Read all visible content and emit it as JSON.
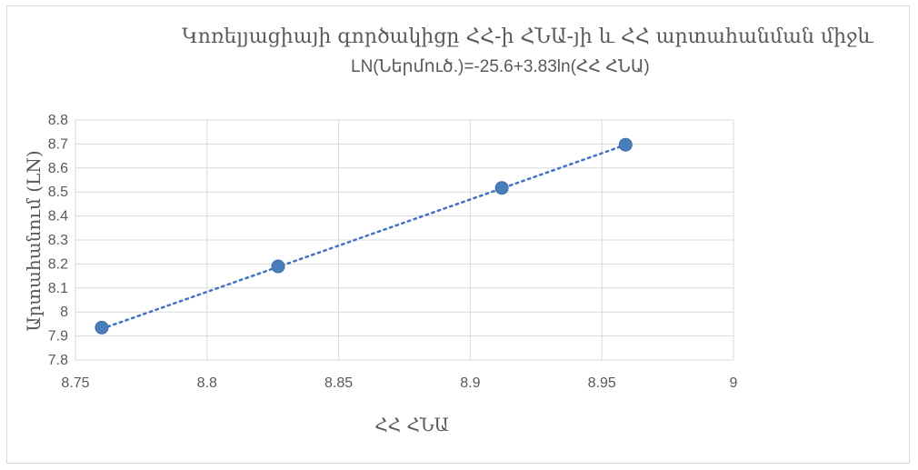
{
  "chart_data": {
    "type": "scatter",
    "title": "Կոռելյացիայի գործակիցը ՀՀ-ի ՀՆԱ-յի  և ՀՀ արտահանման միջև",
    "subtitle": "LN(Ներմուծ.)=-25.6+3.83ln(ՀՀ ՀՆԱ)",
    "xlabel": "ՀՀ ՀՆԱ",
    "ylabel": "Արտահանում (LN)",
    "xlim": [
      8.75,
      9
    ],
    "ylim": [
      7.8,
      8.8
    ],
    "x_ticks": [
      "8.75",
      "8.8",
      "8.85",
      "8.9",
      "8.95",
      "9"
    ],
    "y_ticks": [
      "7.8",
      "7.9",
      "8",
      "8.1",
      "8.2",
      "8.3",
      "8.4",
      "8.5",
      "8.6",
      "8.7",
      "8.8"
    ],
    "grid": true,
    "points": [
      {
        "x": 8.76,
        "y": 7.935
      },
      {
        "x": 8.827,
        "y": 8.19
      },
      {
        "x": 8.912,
        "y": 8.517
      },
      {
        "x": 8.959,
        "y": 8.697
      }
    ],
    "trendline": {
      "type": "linear",
      "style": "dotted",
      "from": [
        8.76,
        7.93
      ],
      "to": [
        8.96,
        8.7
      ]
    },
    "colors": {
      "marker": "#4a7ebb",
      "trendline": "#4472c4",
      "grid": "#d9d9d9",
      "text": "#595959"
    }
  }
}
